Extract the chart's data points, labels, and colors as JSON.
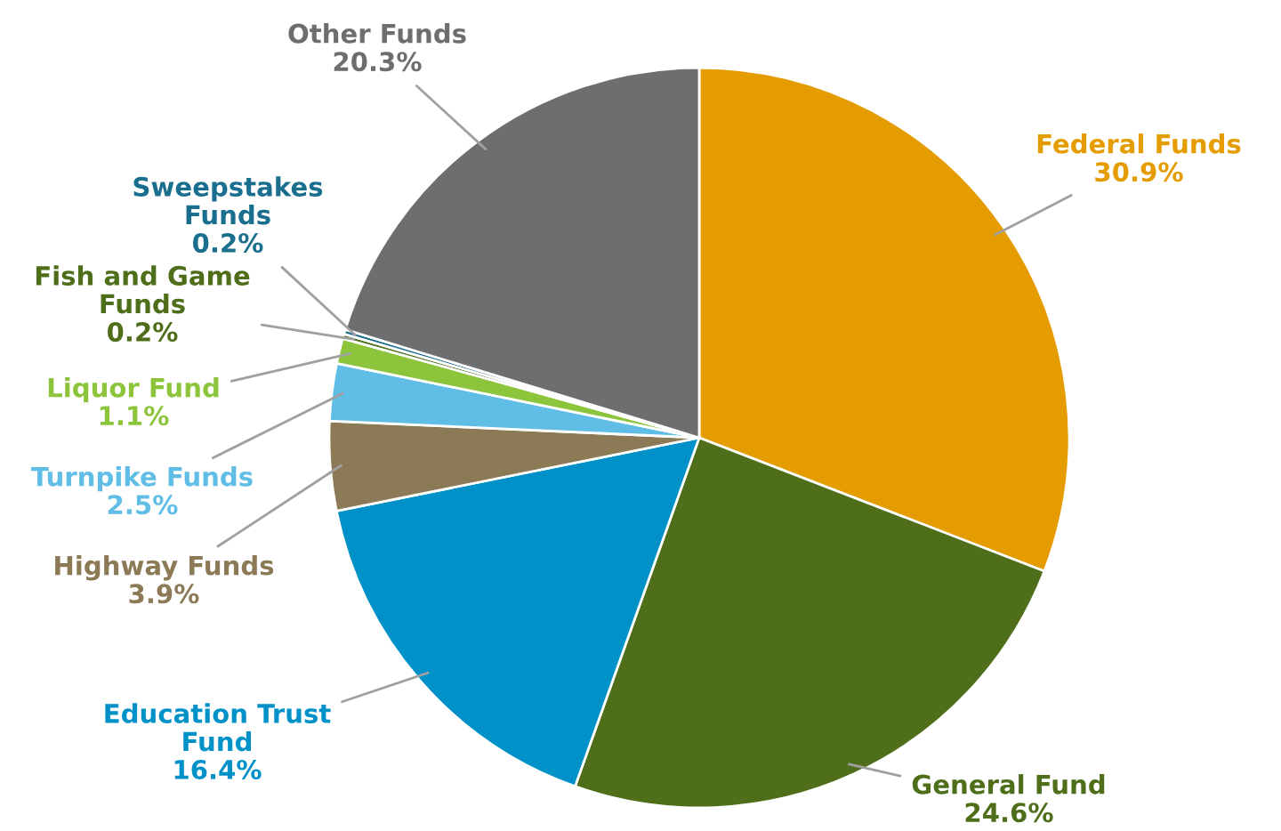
{
  "chart_data": {
    "type": "pie",
    "categories": [
      "Federal Funds",
      "General Fund",
      "Education Trust Fund",
      "Highway Funds",
      "Turnpike Funds",
      "Liquor Fund",
      "Fish and Game Funds",
      "Sweepstakes Funds",
      "Other Funds"
    ],
    "values": [
      30.9,
      24.6,
      16.4,
      3.9,
      2.5,
      1.1,
      0.2,
      0.2,
      20.3
    ],
    "value_labels": [
      "30.9%",
      "24.6%",
      "16.4%",
      "3.9%",
      "2.5%",
      "1.1%",
      "0.2%",
      "0.2%",
      "20.3%"
    ],
    "colors": [
      "#e59c00",
      "#4e6e1a",
      "#0091c8",
      "#8b7a55",
      "#5fbde6",
      "#8cc43c",
      "#4e6e1a",
      "#1a6e8e",
      "#6d6e70"
    ]
  }
}
